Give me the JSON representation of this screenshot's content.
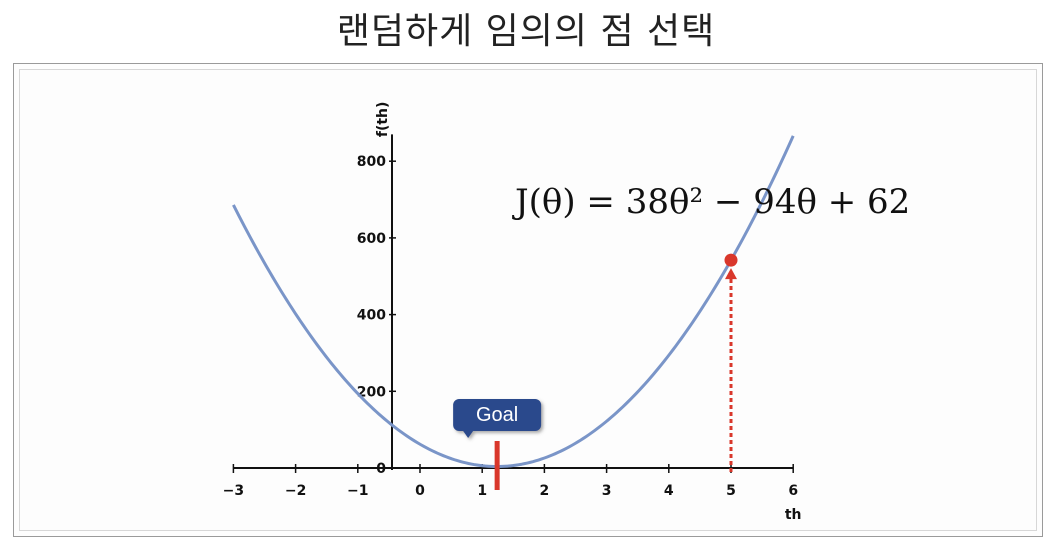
{
  "title": "랜덤하게 임의의 점 선택",
  "chart_data": {
    "type": "line",
    "xlabel": "th",
    "ylabel": "f(th)",
    "xlim": [
      -3,
      6
    ],
    "ylim": [
      0,
      850
    ],
    "x_ticks": [
      -3,
      -2,
      -1,
      0,
      1,
      2,
      3,
      4,
      5,
      6
    ],
    "x_tick_labels": [
      "−3",
      "−2",
      "−1",
      "0",
      "1",
      "2",
      "3",
      "4",
      "5",
      "6"
    ],
    "y_ticks": [
      0,
      200,
      400,
      600,
      800
    ],
    "y_tick_labels": [
      "0",
      "200",
      "400",
      "600",
      "800"
    ],
    "grid": false,
    "series": [
      {
        "function": "38x^2 - 94x + 62",
        "x_range": [
          -3,
          6
        ],
        "color": "#7a95c8"
      }
    ],
    "equation": "J(θ) = 38θ² − 94θ + 62",
    "selected_point": {
      "x": 5,
      "y": 542,
      "color": "#d9372b"
    },
    "goal": {
      "label": "Goal",
      "x": 1.24,
      "color": "#d9372b",
      "badge_color": "#2c4a8c"
    }
  }
}
